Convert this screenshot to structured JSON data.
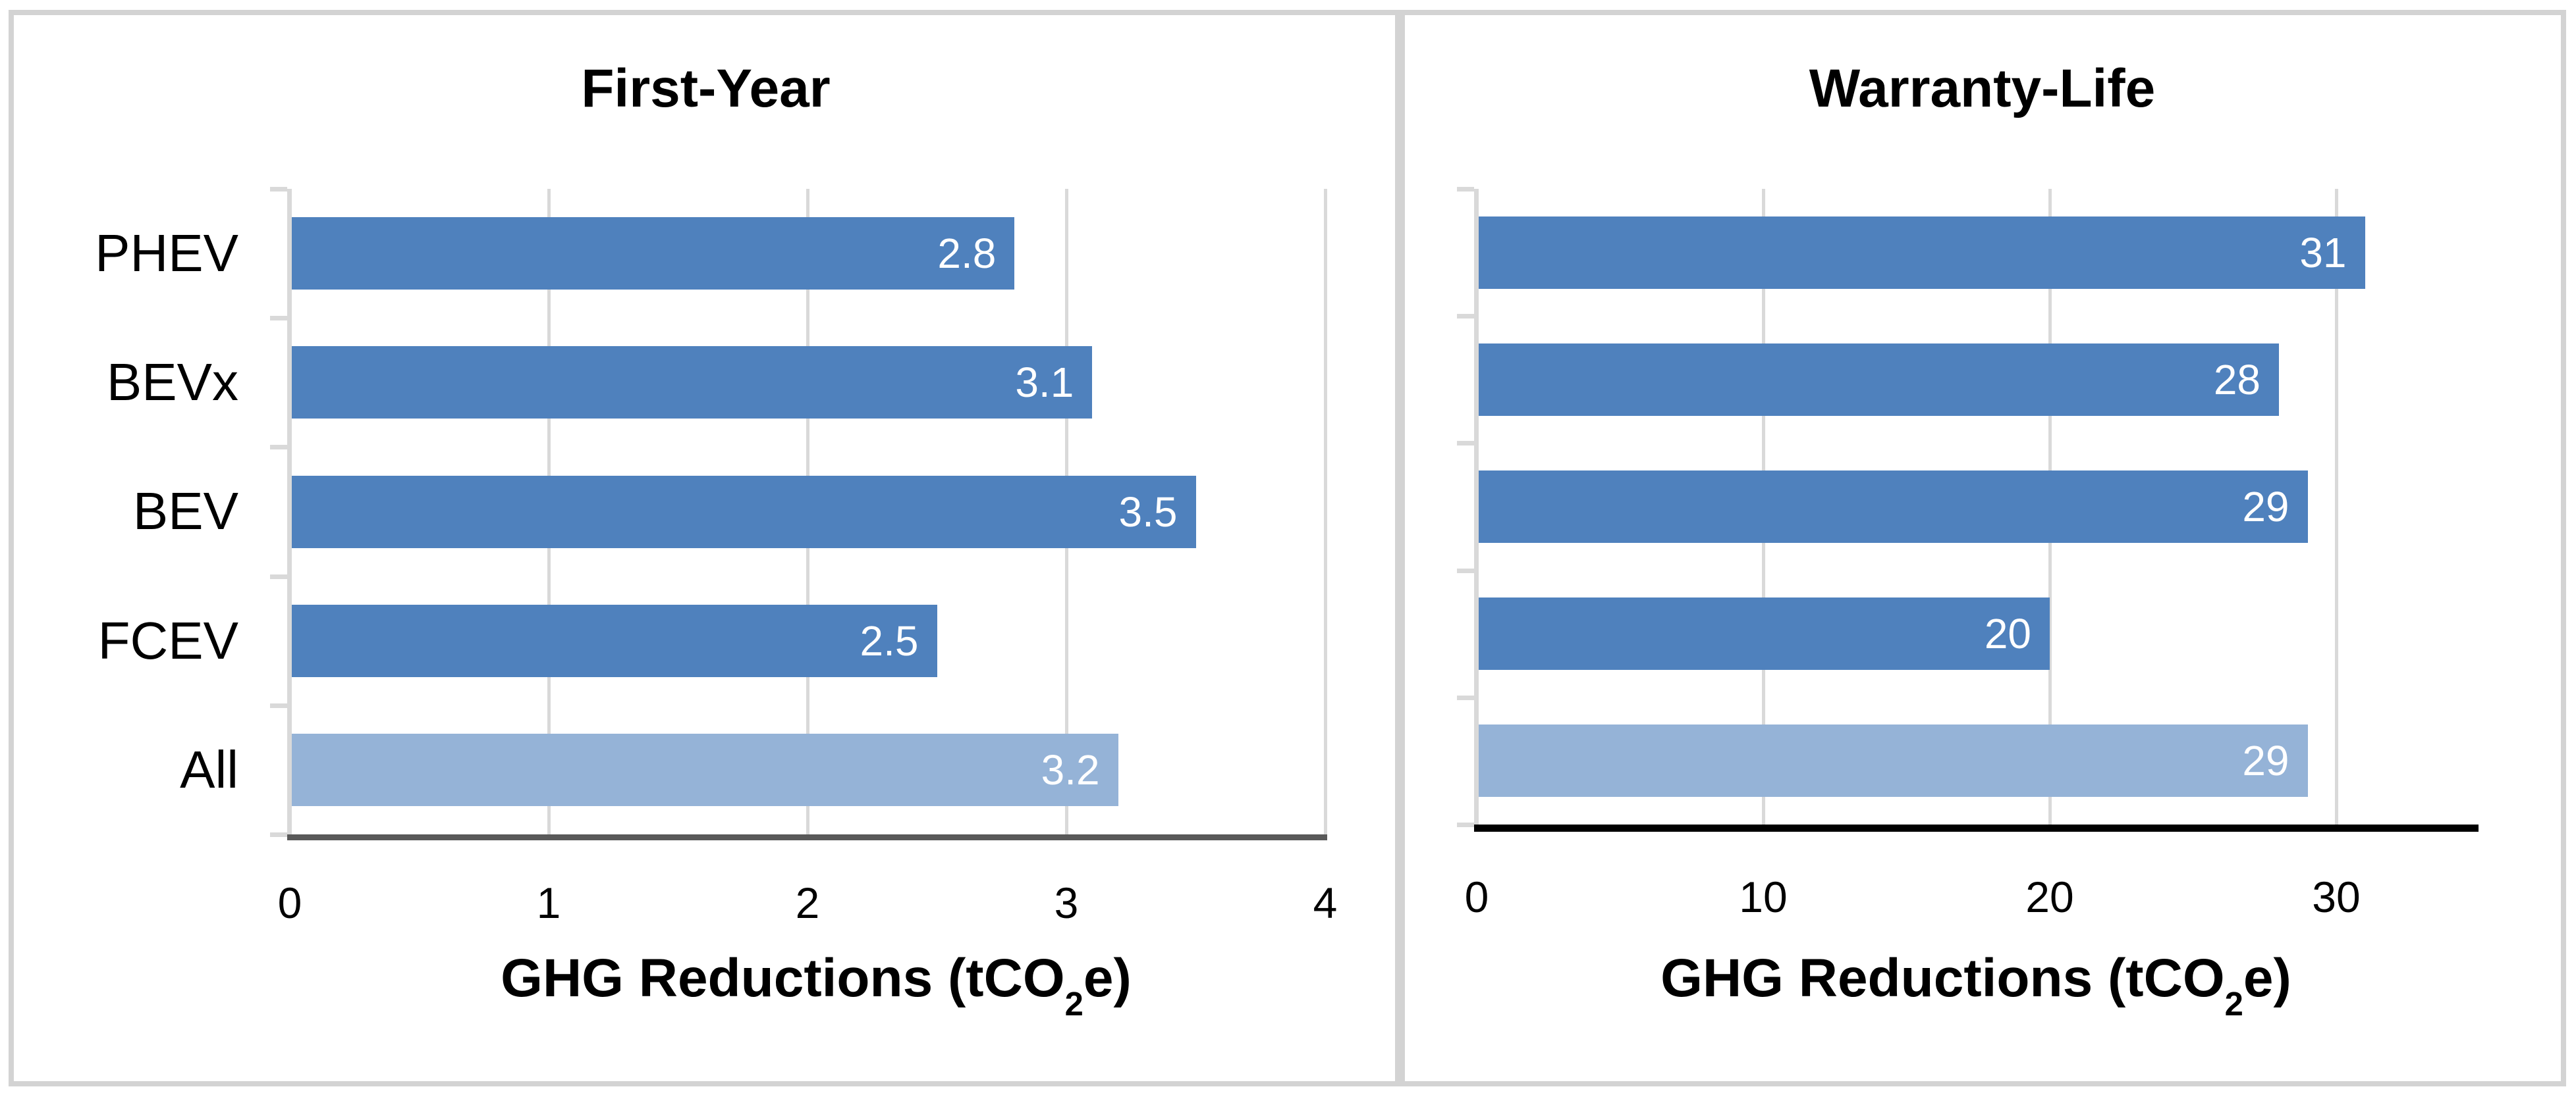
{
  "figure": {
    "background": "#ffffff",
    "border_color": "#d3d3d3",
    "panel_count": 2
  },
  "chart_data": [
    {
      "type": "bar",
      "orientation": "horizontal",
      "title": "First-Year",
      "categories": [
        "PHEV",
        "BEVx",
        "BEV",
        "FCEV",
        "All"
      ],
      "values": [
        2.8,
        3.1,
        3.5,
        2.5,
        3.2
      ],
      "value_labels": [
        "2.8",
        "3.1",
        "3.5",
        "2.5",
        "3.2"
      ],
      "x_ticks": [
        "0",
        "1",
        "2",
        "3",
        "4"
      ],
      "x_tick_values": [
        0,
        1,
        2,
        3,
        4
      ],
      "xlim": [
        0,
        4
      ],
      "xlabel": "GHG Reductions (tCO2e)",
      "xlabel_parts": {
        "prefix": "GHG Reductions (tCO",
        "sub": "2",
        "suffix": "e)"
      },
      "ylabel": "",
      "grid": true,
      "legend": false,
      "show_category_labels": true,
      "highlighted_category": "All",
      "bar_color": "#4f81bd",
      "highlight_bar_color": "#95b3d7",
      "value_label_color": "#ffffff",
      "gridline_color": "#d9d9d9",
      "axis_line_color": "#595959"
    },
    {
      "type": "bar",
      "orientation": "horizontal",
      "title": "Warranty-Life",
      "categories": [
        "PHEV",
        "BEVx",
        "BEV",
        "FCEV",
        "All"
      ],
      "values": [
        31,
        28,
        29,
        20,
        29
      ],
      "value_labels": [
        "31",
        "28",
        "29",
        "20",
        "29"
      ],
      "x_ticks": [
        "0",
        "10",
        "20",
        "30"
      ],
      "x_tick_values": [
        0,
        10,
        20,
        30
      ],
      "xlim": [
        0,
        35
      ],
      "xlabel": "GHG Reductions (tCO2e)",
      "xlabel_parts": {
        "prefix": "GHG Reductions (tCO",
        "sub": "2",
        "suffix": "e)"
      },
      "ylabel": "",
      "grid": true,
      "legend": false,
      "show_category_labels": false,
      "highlighted_category": "All",
      "bar_color": "#4f81bd",
      "highlight_bar_color": "#95b3d7",
      "value_label_color": "#ffffff",
      "gridline_color": "#d9d9d9",
      "axis_line_color": "#000000"
    }
  ]
}
